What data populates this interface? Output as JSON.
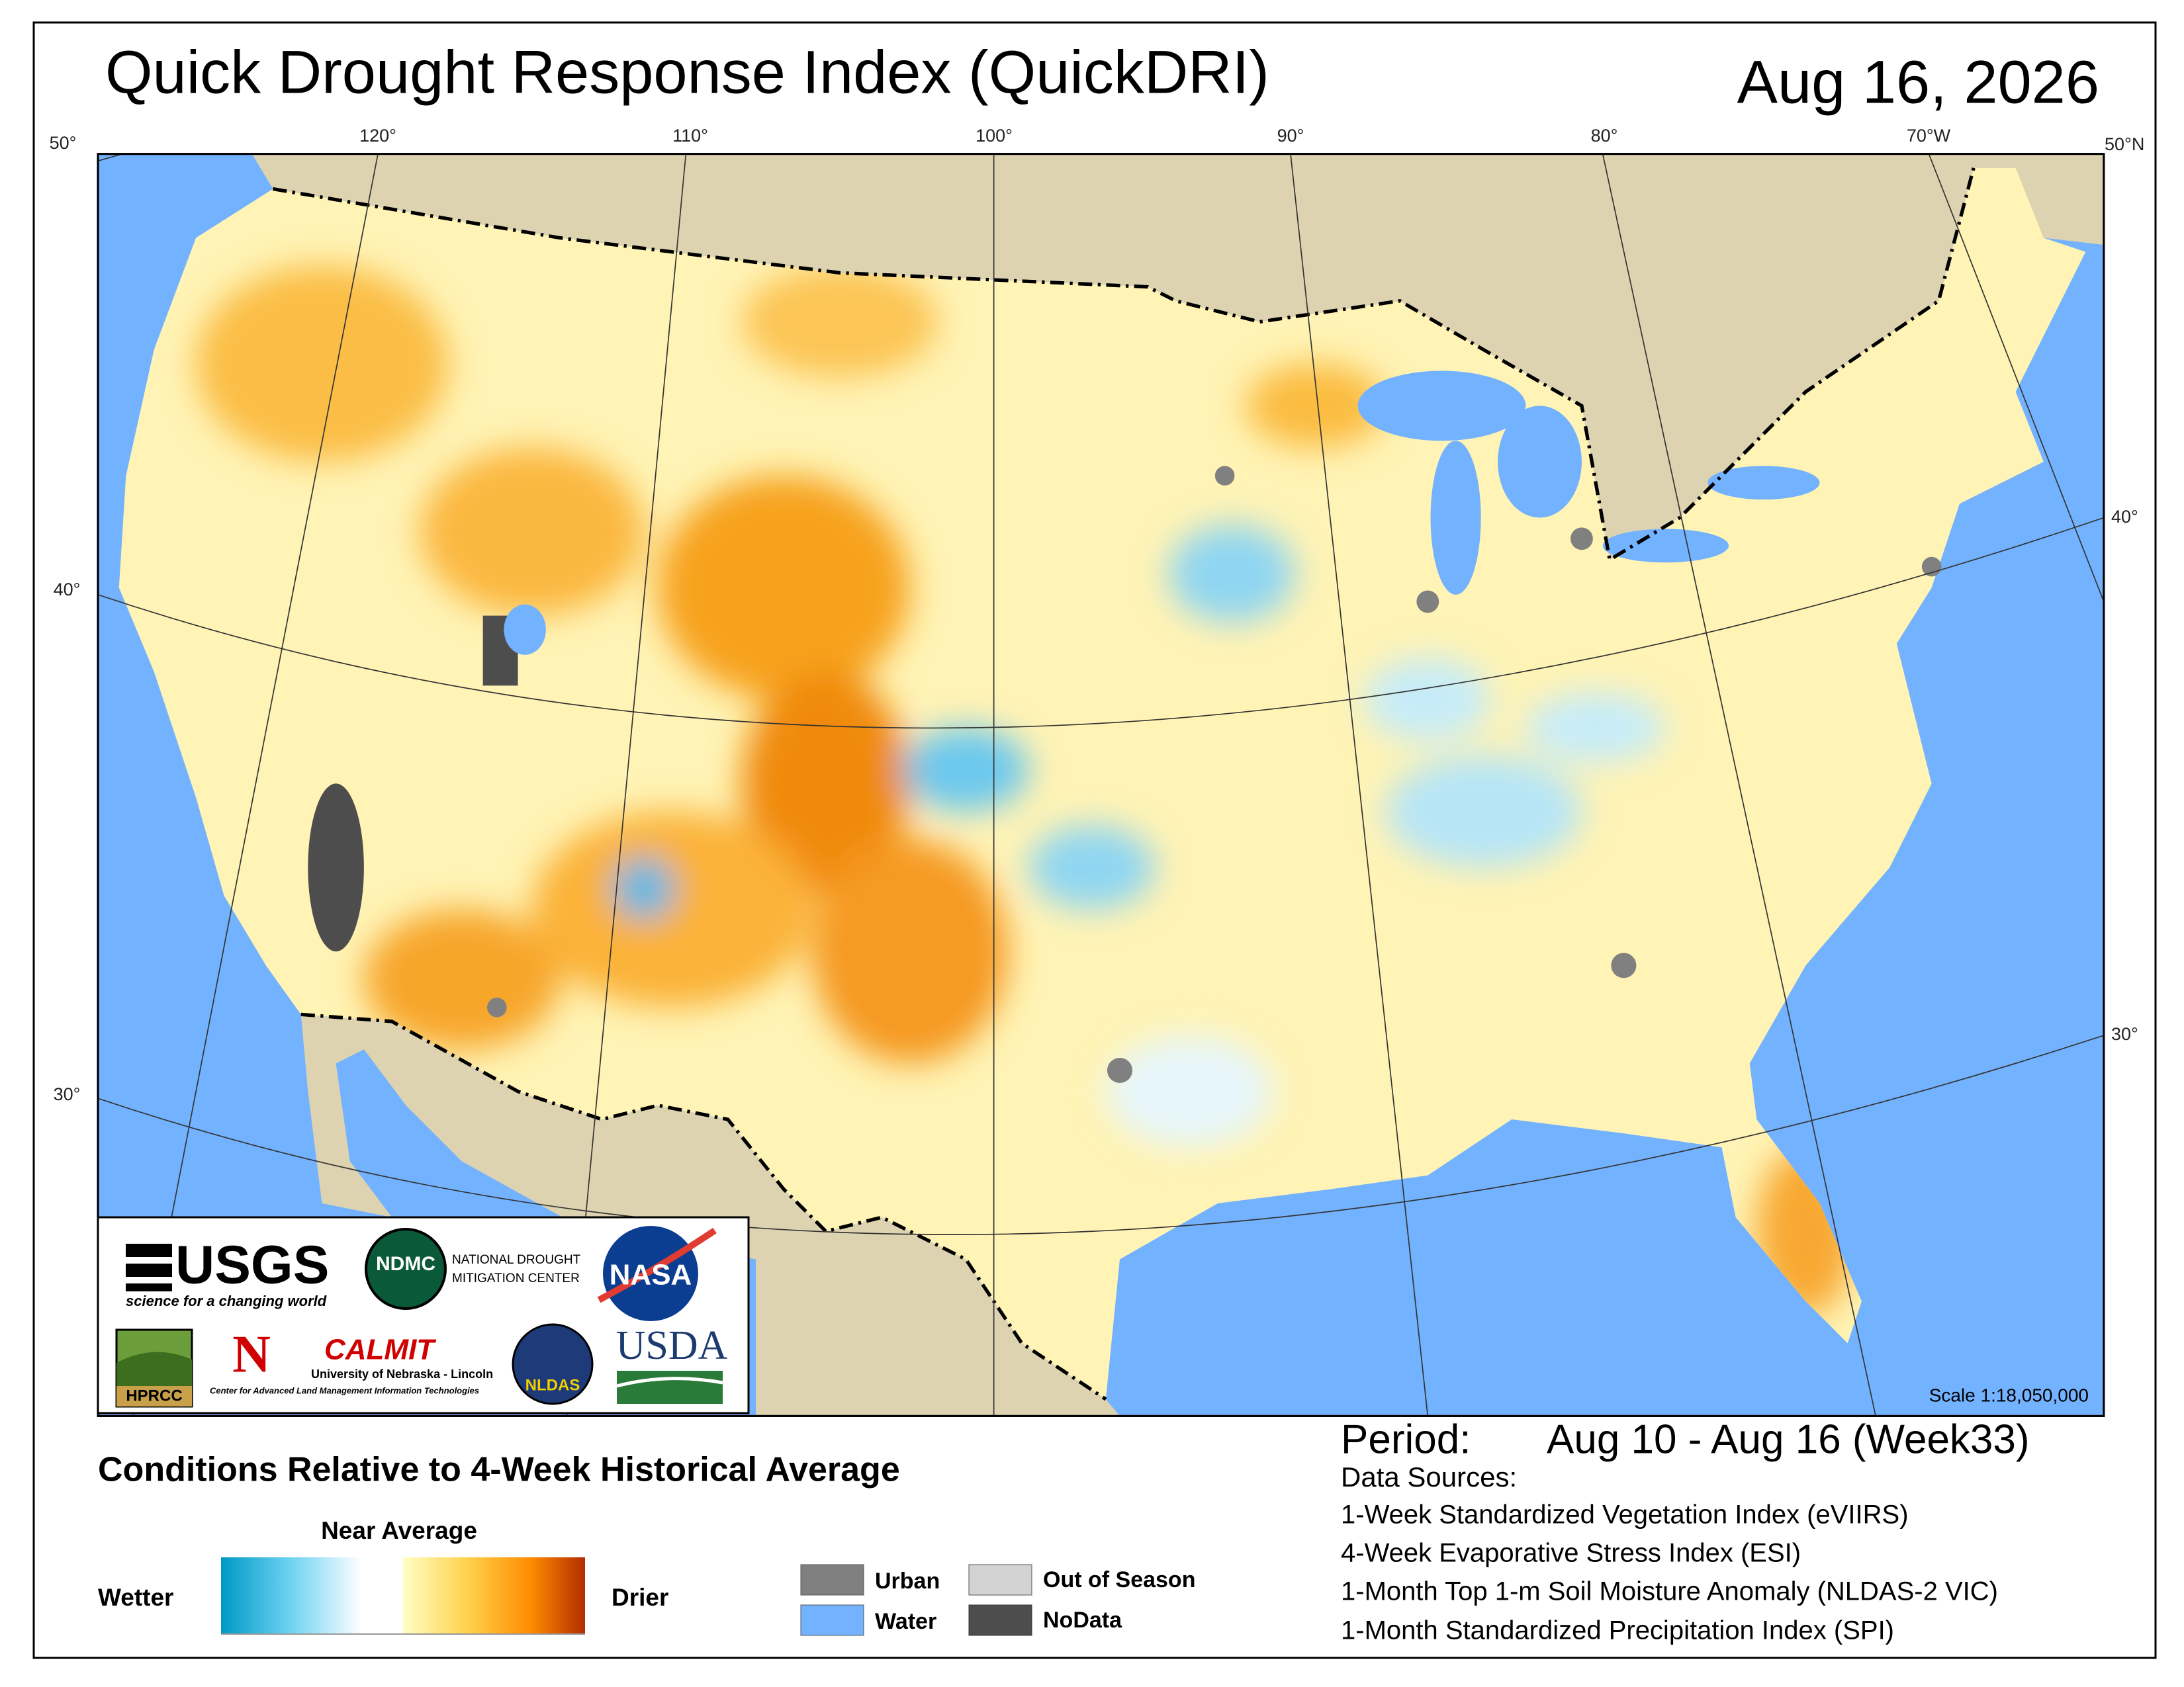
{
  "header": {
    "title": "Quick Drought Response Index (QuickDRI)",
    "date": "Aug 16, 2026"
  },
  "map": {
    "graticule": {
      "top": [
        "50°",
        "120°",
        "110°",
        "100°",
        "90°",
        "80°",
        "70°W",
        "50°N"
      ],
      "left": [
        "40°",
        "30°"
      ],
      "right": [
        "40°",
        "30°"
      ]
    },
    "scale": "Scale 1:18,050,000"
  },
  "logos": {
    "usgs": "USGS",
    "usgs_tagline": "science for a changing world",
    "ndmc": "NDMC",
    "ndmc_name": [
      "NATIONAL DROUGHT",
      "MITIGATION CENTER"
    ],
    "nasa": "NASA",
    "hprcc": "HPRCC",
    "nebraska": "N",
    "calmit": "CALMIT",
    "calmit_univ": "University of Nebraska - Lincoln",
    "calmit_name": "Center for Advanced Land Management Information Technologies",
    "nldas": "NLDAS",
    "usda": "USDA"
  },
  "legend": {
    "title": "Conditions Relative to 4-Week Historical Average",
    "near_average": "Near Average",
    "wetter": "Wetter",
    "drier": "Drier",
    "items": [
      "Urban",
      "Water",
      "Out of Season",
      "NoData"
    ]
  },
  "period": {
    "label": "Period:",
    "range": "Aug 10 - Aug 16 (Week33)",
    "sources_title": "Data Sources:",
    "sources": [
      "1-Week Standardized Vegetation Index (eVIIRS)",
      "4-Week Evaporative Stress Index (ESI)",
      "1-Month Top 1-m Soil Moisture Anomaly (NLDAS-2 VIC)",
      "1-Month Standardized Precipitation Index (SPI)"
    ]
  }
}
